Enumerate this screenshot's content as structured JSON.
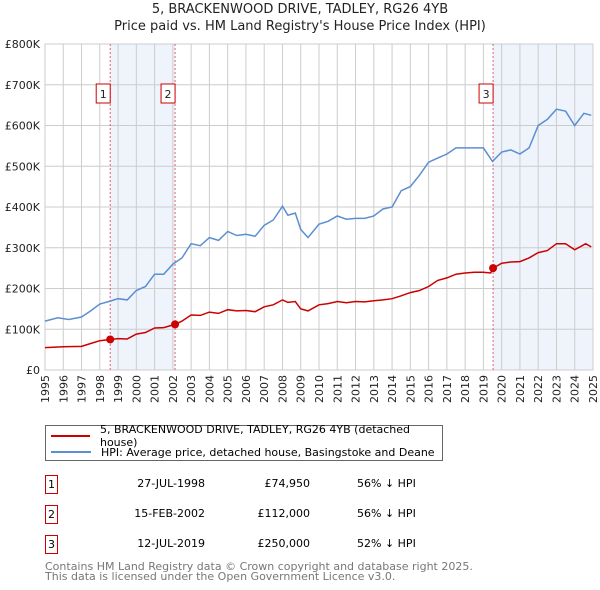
{
  "chart_data": {
    "type": "line",
    "title": "5, BRACKENWOOD DRIVE, TADLEY, RG26 4YB",
    "subtitle": "Price paid vs. HM Land Registry's House Price Index (HPI)",
    "xlim": [
      1995,
      2025
    ],
    "ylim": [
      0,
      800000
    ],
    "y_ticks": [
      {
        "v": 0,
        "label": "£0"
      },
      {
        "v": 100000,
        "label": "£100K"
      },
      {
        "v": 200000,
        "label": "£200K"
      },
      {
        "v": 300000,
        "label": "£300K"
      },
      {
        "v": 400000,
        "label": "£400K"
      },
      {
        "v": 500000,
        "label": "£500K"
      },
      {
        "v": 600000,
        "label": "£600K"
      },
      {
        "v": 700000,
        "label": "£700K"
      },
      {
        "v": 800000,
        "label": "£800K"
      }
    ],
    "x_ticks": [
      "1995",
      "1996",
      "1997",
      "1998",
      "1999",
      "2000",
      "2001",
      "2002",
      "2003",
      "2004",
      "2005",
      "2006",
      "2007",
      "2008",
      "2009",
      "2010",
      "2011",
      "2012",
      "2013",
      "2014",
      "2015",
      "2016",
      "2017",
      "2018",
      "2019",
      "2020",
      "2021",
      "2022",
      "2023",
      "2024",
      "2025"
    ],
    "grid": true,
    "colors": {
      "property": "#cc0000",
      "hpi": "#5b8fd0",
      "shade": "#eef3fc",
      "marker_border": "#cc0000"
    },
    "series": [
      {
        "name": "5, BRACKENWOOD DRIVE, TADLEY, RG26 4YB (detached house)",
        "key": "property",
        "x": [
          1995,
          1996,
          1997,
          1997.5,
          1998,
          1998.57,
          1999,
          1999.5,
          2000,
          2000.5,
          2001,
          2001.5,
          2002.12,
          2002.5,
          2003,
          2003.5,
          2004,
          2004.5,
          2005,
          2005.5,
          2006,
          2006.5,
          2007,
          2007.5,
          2008,
          2008.3,
          2008.7,
          2009,
          2009.4,
          2010,
          2010.5,
          2011,
          2011.5,
          2012,
          2012.5,
          2013,
          2013.5,
          2014,
          2014.5,
          2015,
          2015.5,
          2016,
          2016.5,
          2017,
          2017.5,
          2018,
          2018.5,
          2019,
          2019.4,
          2019.53,
          2020,
          2020.5,
          2021,
          2021.5,
          2022,
          2022.5,
          2023,
          2023.5,
          2024,
          2024.6,
          2024.9
        ],
        "y": [
          55000,
          57000,
          58000,
          65000,
          72000,
          74950,
          77000,
          76000,
          88000,
          92000,
          103000,
          104000,
          112000,
          120000,
          135000,
          134000,
          142000,
          139000,
          148000,
          145000,
          146000,
          143000,
          155000,
          160000,
          172000,
          166000,
          168000,
          150000,
          145000,
          160000,
          163000,
          168000,
          165000,
          168000,
          167000,
          170000,
          172000,
          175000,
          182000,
          190000,
          195000,
          205000,
          220000,
          226000,
          235000,
          238000,
          240000,
          240000,
          238000,
          250000,
          262000,
          265000,
          266000,
          275000,
          288000,
          293000,
          310000,
          310000,
          295000,
          310000,
          302000
        ]
      },
      {
        "name": "HPI: Average price, detached house, Basingstoke and Deane",
        "key": "hpi",
        "x": [
          1995,
          1995.7,
          1996.3,
          1997,
          1997.5,
          1998,
          1998.5,
          1999,
          1999.5,
          2000,
          2000.5,
          2001,
          2001.5,
          2002,
          2002.5,
          2003,
          2003.5,
          2004,
          2004.5,
          2005,
          2005.5,
          2006,
          2006.5,
          2007,
          2007.5,
          2008,
          2008.3,
          2008.7,
          2009,
          2009.4,
          2010,
          2010.5,
          2011,
          2011.5,
          2012,
          2012.5,
          2013,
          2013.5,
          2014,
          2014.5,
          2015,
          2015.5,
          2016,
          2016.5,
          2017,
          2017.5,
          2018,
          2018.5,
          2019,
          2019.5,
          2020,
          2020.5,
          2021,
          2021.5,
          2022,
          2022.5,
          2023,
          2023.5,
          2024,
          2024.5,
          2024.9
        ],
        "y": [
          120000,
          128000,
          124000,
          130000,
          145000,
          162000,
          168000,
          175000,
          172000,
          195000,
          205000,
          235000,
          235000,
          260000,
          275000,
          310000,
          305000,
          325000,
          318000,
          340000,
          330000,
          333000,
          328000,
          355000,
          368000,
          402000,
          380000,
          385000,
          345000,
          325000,
          358000,
          365000,
          378000,
          370000,
          372000,
          372000,
          378000,
          395000,
          400000,
          440000,
          450000,
          478000,
          510000,
          520000,
          530000,
          545000,
          545000,
          545000,
          545000,
          512000,
          535000,
          540000,
          530000,
          545000,
          600000,
          615000,
          640000,
          635000,
          600000,
          630000,
          625000
        ]
      }
    ],
    "sales": [
      {
        "n": "1",
        "x": 1998.57,
        "y": 74950
      },
      {
        "n": "2",
        "x": 2002.12,
        "y": 112000
      },
      {
        "n": "3",
        "x": 2019.53,
        "y": 250000
      }
    ]
  },
  "legend": {
    "property": "5, BRACKENWOOD DRIVE, TADLEY, RG26 4YB (detached house)",
    "hpi": "HPI: Average price, detached house, Basingstoke and Deane"
  },
  "table": [
    {
      "n": "1",
      "date": "27-JUL-1998",
      "price": "£74,950",
      "hpi": "56% ↓ HPI"
    },
    {
      "n": "2",
      "date": "15-FEB-2002",
      "price": "£112,000",
      "hpi": "56% ↓ HPI"
    },
    {
      "n": "3",
      "date": "12-JUL-2019",
      "price": "£250,000",
      "hpi": "52% ↓ HPI"
    }
  ],
  "footer": {
    "line1": "Contains HM Land Registry data © Crown copyright and database right 2025.",
    "line2": "This data is licensed under the Open Government Licence v3.0."
  }
}
